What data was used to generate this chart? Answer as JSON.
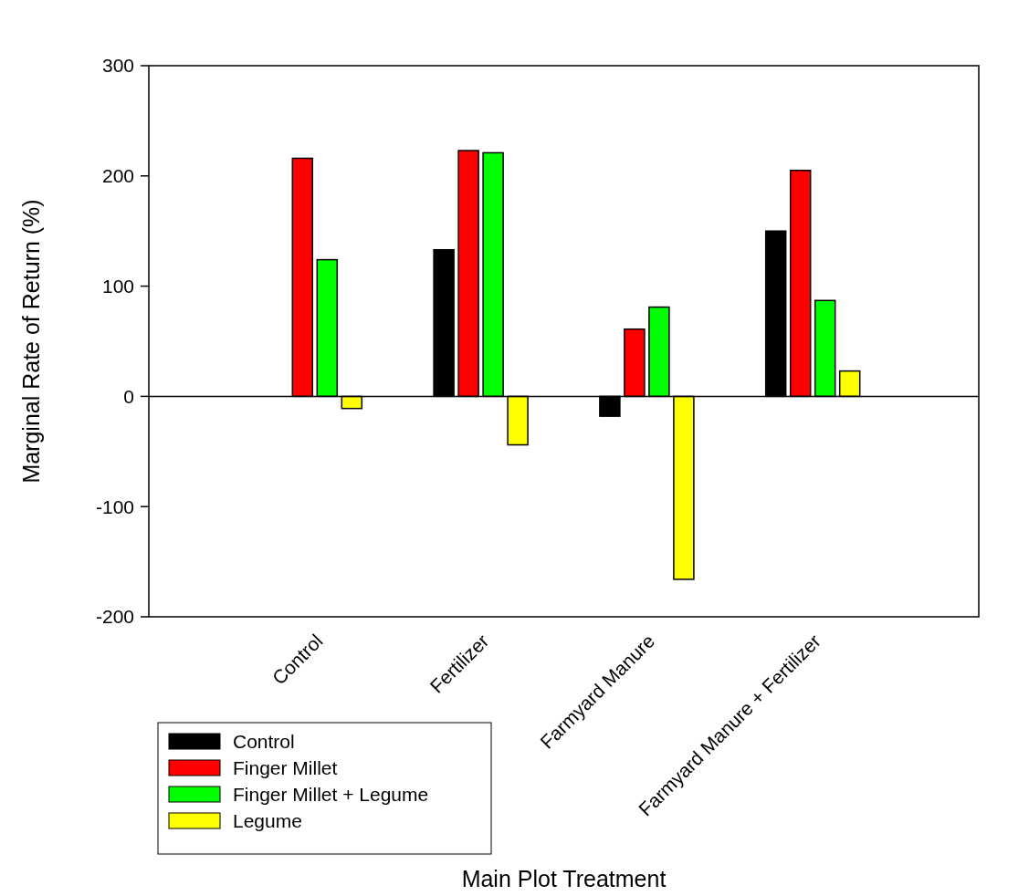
{
  "chart_data": {
    "type": "bar",
    "xlabel": "Main Plot Treatment",
    "ylabel": "Marginal Rate of Return (%)",
    "categories": [
      "Control",
      "Fertilizer",
      "Farmyard Manure",
      "Farmyard Manure + Fertilizer"
    ],
    "series": [
      {
        "name": "Control",
        "color": "#000000",
        "values": [
          null,
          133,
          -18,
          150
        ]
      },
      {
        "name": "Finger Millet",
        "color": "#ff0000",
        "values": [
          216,
          223,
          61,
          205
        ]
      },
      {
        "name": "Finger Millet + Legume",
        "color": "#00ff00",
        "values": [
          124,
          221,
          81,
          87
        ]
      },
      {
        "name": "Legume",
        "color": "#ffff00",
        "values": [
          -11,
          -44,
          -166,
          23
        ]
      }
    ],
    "ylim": [
      -200,
      300
    ],
    "yticks": [
      -200,
      -100,
      0,
      100,
      200,
      300
    ],
    "legend": "bottom left"
  }
}
